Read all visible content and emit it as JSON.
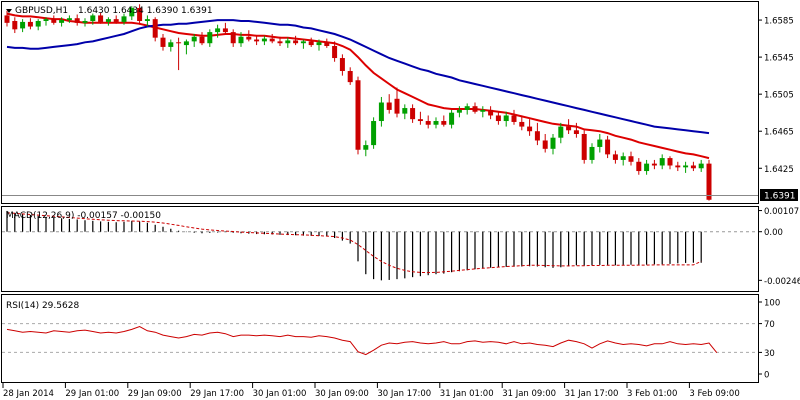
{
  "chart_data": [
    {
      "type": "candlestick",
      "panel": "price",
      "symbol_header": "GBPUSD,H1",
      "ohlc_header": "1.6430 1.6434 1.6390 1.6391",
      "current_price_label": "1.6391",
      "ylim": [
        1.63875,
        1.66045
      ],
      "y_ticks": [
        "1.6585",
        "1.6545",
        "1.6505",
        "1.6465",
        "1.6425"
      ],
      "bull_color": "#00a000",
      "bear_color": "#cc0000",
      "candles": [
        {
          "o": 1.659,
          "h": 1.6595,
          "l": 1.6578,
          "c": 1.6582
        },
        {
          "o": 1.6584,
          "h": 1.6588,
          "l": 1.6571,
          "c": 1.6575
        },
        {
          "o": 1.6576,
          "h": 1.6586,
          "l": 1.6572,
          "c": 1.6583
        },
        {
          "o": 1.6583,
          "h": 1.6587,
          "l": 1.6575,
          "c": 1.6578
        },
        {
          "o": 1.6578,
          "h": 1.6586,
          "l": 1.6574,
          "c": 1.6584
        },
        {
          "o": 1.6584,
          "h": 1.6588,
          "l": 1.6579,
          "c": 1.6586
        },
        {
          "o": 1.6586,
          "h": 1.659,
          "l": 1.658,
          "c": 1.6582
        },
        {
          "o": 1.6582,
          "h": 1.6588,
          "l": 1.6578,
          "c": 1.6585
        },
        {
          "o": 1.6585,
          "h": 1.659,
          "l": 1.6582,
          "c": 1.6587
        },
        {
          "o": 1.6587,
          "h": 1.6591,
          "l": 1.6579,
          "c": 1.6582
        },
        {
          "o": 1.6582,
          "h": 1.6587,
          "l": 1.6578,
          "c": 1.6584
        },
        {
          "o": 1.6584,
          "h": 1.6592,
          "l": 1.658,
          "c": 1.659
        },
        {
          "o": 1.659,
          "h": 1.6593,
          "l": 1.6581,
          "c": 1.6583
        },
        {
          "o": 1.6583,
          "h": 1.6588,
          "l": 1.6579,
          "c": 1.6586
        },
        {
          "o": 1.6586,
          "h": 1.659,
          "l": 1.6581,
          "c": 1.6583
        },
        {
          "o": 1.6583,
          "h": 1.6592,
          "l": 1.658,
          "c": 1.6589
        },
        {
          "o": 1.6589,
          "h": 1.66,
          "l": 1.6585,
          "c": 1.6598
        },
        {
          "o": 1.6598,
          "h": 1.6602,
          "l": 1.658,
          "c": 1.6584
        },
        {
          "o": 1.6584,
          "h": 1.659,
          "l": 1.6578,
          "c": 1.6586
        },
        {
          "o": 1.6586,
          "h": 1.6588,
          "l": 1.6562,
          "c": 1.6566
        },
        {
          "o": 1.6566,
          "h": 1.657,
          "l": 1.6552,
          "c": 1.6556
        },
        {
          "o": 1.6556,
          "h": 1.6564,
          "l": 1.6551,
          "c": 1.6561
        },
        {
          "o": 1.6561,
          "h": 1.6566,
          "l": 1.6531,
          "c": 1.656
        },
        {
          "o": 1.6558,
          "h": 1.6564,
          "l": 1.6548,
          "c": 1.6562
        },
        {
          "o": 1.6562,
          "h": 1.657,
          "l": 1.6556,
          "c": 1.6567
        },
        {
          "o": 1.6567,
          "h": 1.6572,
          "l": 1.6558,
          "c": 1.656
        },
        {
          "o": 1.656,
          "h": 1.6575,
          "l": 1.6556,
          "c": 1.6572
        },
        {
          "o": 1.6572,
          "h": 1.658,
          "l": 1.6566,
          "c": 1.6576
        },
        {
          "o": 1.6576,
          "h": 1.6582,
          "l": 1.657,
          "c": 1.6572
        },
        {
          "o": 1.6572,
          "h": 1.6575,
          "l": 1.6556,
          "c": 1.656
        },
        {
          "o": 1.656,
          "h": 1.6572,
          "l": 1.6556,
          "c": 1.6567
        },
        {
          "o": 1.6567,
          "h": 1.6574,
          "l": 1.6562,
          "c": 1.6564
        },
        {
          "o": 1.6564,
          "h": 1.6568,
          "l": 1.6558,
          "c": 1.6562
        },
        {
          "o": 1.6562,
          "h": 1.6568,
          "l": 1.6558,
          "c": 1.6565
        },
        {
          "o": 1.6565,
          "h": 1.657,
          "l": 1.656,
          "c": 1.6562
        },
        {
          "o": 1.6562,
          "h": 1.6567,
          "l": 1.6557,
          "c": 1.656
        },
        {
          "o": 1.656,
          "h": 1.6566,
          "l": 1.6555,
          "c": 1.6563
        },
        {
          "o": 1.6563,
          "h": 1.6568,
          "l": 1.6558,
          "c": 1.656
        },
        {
          "o": 1.656,
          "h": 1.6564,
          "l": 1.6554,
          "c": 1.6562
        },
        {
          "o": 1.6562,
          "h": 1.6566,
          "l": 1.6556,
          "c": 1.6558
        },
        {
          "o": 1.6558,
          "h": 1.6564,
          "l": 1.6552,
          "c": 1.6561
        },
        {
          "o": 1.6561,
          "h": 1.6565,
          "l": 1.6555,
          "c": 1.6557
        },
        {
          "o": 1.6557,
          "h": 1.6562,
          "l": 1.654,
          "c": 1.6544
        },
        {
          "o": 1.6544,
          "h": 1.6548,
          "l": 1.6525,
          "c": 1.653
        },
        {
          "o": 1.653,
          "h": 1.6534,
          "l": 1.6515,
          "c": 1.6518
        },
        {
          "o": 1.652,
          "h": 1.6524,
          "l": 1.644,
          "c": 1.6445
        },
        {
          "o": 1.6445,
          "h": 1.6455,
          "l": 1.6438,
          "c": 1.645
        },
        {
          "o": 1.645,
          "h": 1.648,
          "l": 1.6446,
          "c": 1.6476
        },
        {
          "o": 1.6476,
          "h": 1.6502,
          "l": 1.647,
          "c": 1.6496
        },
        {
          "o": 1.6496,
          "h": 1.6505,
          "l": 1.6484,
          "c": 1.6488
        },
        {
          "o": 1.65,
          "h": 1.6512,
          "l": 1.648,
          "c": 1.6484
        },
        {
          "o": 1.6484,
          "h": 1.6494,
          "l": 1.6478,
          "c": 1.649
        },
        {
          "o": 1.649,
          "h": 1.6494,
          "l": 1.6474,
          "c": 1.6478
        },
        {
          "o": 1.6478,
          "h": 1.6486,
          "l": 1.6472,
          "c": 1.6476
        },
        {
          "o": 1.6476,
          "h": 1.6482,
          "l": 1.6468,
          "c": 1.6472
        },
        {
          "o": 1.6472,
          "h": 1.648,
          "l": 1.6468,
          "c": 1.6476
        },
        {
          "o": 1.6476,
          "h": 1.6482,
          "l": 1.647,
          "c": 1.6472
        },
        {
          "o": 1.6472,
          "h": 1.6488,
          "l": 1.6468,
          "c": 1.6485
        },
        {
          "o": 1.6485,
          "h": 1.6492,
          "l": 1.648,
          "c": 1.6488
        },
        {
          "o": 1.6488,
          "h": 1.6495,
          "l": 1.6483,
          "c": 1.6492
        },
        {
          "o": 1.6492,
          "h": 1.6496,
          "l": 1.6484,
          "c": 1.6486
        },
        {
          "o": 1.6486,
          "h": 1.6492,
          "l": 1.648,
          "c": 1.6488
        },
        {
          "o": 1.6488,
          "h": 1.6492,
          "l": 1.6478,
          "c": 1.6482
        },
        {
          "o": 1.6482,
          "h": 1.6486,
          "l": 1.6472,
          "c": 1.6476
        },
        {
          "o": 1.6476,
          "h": 1.6486,
          "l": 1.647,
          "c": 1.6482
        },
        {
          "o": 1.6482,
          "h": 1.6488,
          "l": 1.6472,
          "c": 1.6475
        },
        {
          "o": 1.6475,
          "h": 1.6482,
          "l": 1.6466,
          "c": 1.647
        },
        {
          "o": 1.647,
          "h": 1.6478,
          "l": 1.646,
          "c": 1.6465
        },
        {
          "o": 1.6465,
          "h": 1.6474,
          "l": 1.645,
          "c": 1.6455
        },
        {
          "o": 1.6455,
          "h": 1.6462,
          "l": 1.6442,
          "c": 1.6446
        },
        {
          "o": 1.6446,
          "h": 1.6462,
          "l": 1.644,
          "c": 1.6458
        },
        {
          "o": 1.6458,
          "h": 1.6474,
          "l": 1.6452,
          "c": 1.647
        },
        {
          "o": 1.647,
          "h": 1.6478,
          "l": 1.6462,
          "c": 1.6466
        },
        {
          "o": 1.6466,
          "h": 1.6474,
          "l": 1.6458,
          "c": 1.6462
        },
        {
          "o": 1.6462,
          "h": 1.6466,
          "l": 1.643,
          "c": 1.6434
        },
        {
          "o": 1.6434,
          "h": 1.6452,
          "l": 1.643,
          "c": 1.6448
        },
        {
          "o": 1.6448,
          "h": 1.6462,
          "l": 1.6442,
          "c": 1.6456
        },
        {
          "o": 1.6456,
          "h": 1.646,
          "l": 1.6436,
          "c": 1.644
        },
        {
          "o": 1.644,
          "h": 1.6444,
          "l": 1.643,
          "c": 1.6434
        },
        {
          "o": 1.6434,
          "h": 1.6442,
          "l": 1.6428,
          "c": 1.6438
        },
        {
          "o": 1.6438,
          "h": 1.6443,
          "l": 1.6428,
          "c": 1.6432
        },
        {
          "o": 1.6432,
          "h": 1.6436,
          "l": 1.6418,
          "c": 1.6422
        },
        {
          "o": 1.6422,
          "h": 1.6434,
          "l": 1.6418,
          "c": 1.643
        },
        {
          "o": 1.643,
          "h": 1.6434,
          "l": 1.6424,
          "c": 1.6428
        },
        {
          "o": 1.6428,
          "h": 1.644,
          "l": 1.6424,
          "c": 1.6436
        },
        {
          "o": 1.6436,
          "h": 1.6438,
          "l": 1.6424,
          "c": 1.6428
        },
        {
          "o": 1.6428,
          "h": 1.6432,
          "l": 1.6422,
          "c": 1.6426
        },
        {
          "o": 1.6426,
          "h": 1.6432,
          "l": 1.642,
          "c": 1.6428
        },
        {
          "o": 1.6428,
          "h": 1.6432,
          "l": 1.6422,
          "c": 1.6425
        },
        {
          "o": 1.6425,
          "h": 1.6434,
          "l": 1.6421,
          "c": 1.643
        },
        {
          "o": 1.643,
          "h": 1.6434,
          "l": 1.639,
          "c": 1.6391
        }
      ],
      "moving_averages": [
        {
          "color": "#dd0000",
          "points": [
            1.6592,
            1.659,
            1.6589,
            1.6589,
            1.6588,
            1.6587,
            1.6586,
            1.6586,
            1.6584,
            1.6583,
            1.6582,
            1.6582,
            1.6582,
            1.6582,
            1.6582,
            1.6582,
            1.6582,
            1.6581,
            1.6579,
            1.6577,
            1.6575,
            1.6573,
            1.6571,
            1.657,
            1.6569,
            1.6568,
            1.6568,
            1.6569,
            1.657,
            1.657,
            1.6569,
            1.6569,
            1.6568,
            1.6568,
            1.6567,
            1.6566,
            1.6566,
            1.6565,
            1.6564,
            1.6563,
            1.6562,
            1.6561,
            1.656,
            1.6557,
            1.6553,
            1.6545,
            1.6536,
            1.6528,
            1.6522,
            1.6516,
            1.651,
            1.6506,
            1.6502,
            1.6498,
            1.6494,
            1.6492,
            1.649,
            1.6489,
            1.6489,
            1.6489,
            1.6489,
            1.6488,
            1.6487,
            1.6486,
            1.6485,
            1.6483,
            1.6481,
            1.6479,
            1.6477,
            1.6475,
            1.6473,
            1.6472,
            1.6471,
            1.647,
            1.6467,
            1.6466,
            1.6465,
            1.6463,
            1.646,
            1.6458,
            1.6456,
            1.6453,
            1.6451,
            1.6449,
            1.6447,
            1.6445,
            1.6443,
            1.6441,
            1.644,
            1.6438,
            1.6436
          ]
        },
        {
          "color": "#0000aa",
          "points": [
            1.6556,
            1.6555,
            1.6555,
            1.6554,
            1.6554,
            1.6555,
            1.6556,
            1.6557,
            1.6558,
            1.6559,
            1.6561,
            1.6562,
            1.6564,
            1.6566,
            1.6568,
            1.657,
            1.6573,
            1.6576,
            1.6578,
            1.6579,
            1.658,
            1.658,
            1.6581,
            1.6581,
            1.6582,
            1.6583,
            1.6584,
            1.6585,
            1.6585,
            1.6585,
            1.6584,
            1.6584,
            1.6583,
            1.6582,
            1.6581,
            1.658,
            1.658,
            1.6579,
            1.6577,
            1.6576,
            1.6574,
            1.6572,
            1.657,
            1.6567,
            1.6564,
            1.656,
            1.6556,
            1.6552,
            1.6548,
            1.6544,
            1.6541,
            1.6538,
            1.6535,
            1.6532,
            1.653,
            1.6527,
            1.6525,
            1.6523,
            1.652,
            1.6518,
            1.6516,
            1.6514,
            1.6512,
            1.651,
            1.6508,
            1.6506,
            1.6504,
            1.6502,
            1.65,
            1.6498,
            1.6496,
            1.6494,
            1.6492,
            1.649,
            1.6488,
            1.6486,
            1.6484,
            1.6482,
            1.648,
            1.6478,
            1.6476,
            1.6474,
            1.6472,
            1.647,
            1.6469,
            1.6468,
            1.6467,
            1.6466,
            1.6465,
            1.6464,
            1.6463
          ]
        }
      ]
    },
    {
      "type": "bar",
      "panel": "macd",
      "header": "MACD(12,26,9) -0.00157 -0.00150",
      "ylim": [
        -0.003,
        0.00125
      ],
      "y_ticks": [
        "0.00107",
        "0.00",
        "-0.00246"
      ],
      "histogram": [
        0.00105,
        0.00095,
        0.0009,
        0.00085,
        0.0008,
        0.00075,
        0.00072,
        0.00068,
        0.00065,
        0.00062,
        0.00058,
        0.00055,
        0.00052,
        0.0005,
        0.00048,
        0.0005,
        0.00055,
        0.00052,
        0.00045,
        0.00035,
        0.00025,
        0.00015,
        5e-05,
        -2e-05,
        -5e-05,
        -8e-05,
        -6e-05,
        -4e-05,
        -2e-05,
        -5e-05,
        -8e-05,
        -0.0001,
        -0.00012,
        -0.00013,
        -0.00014,
        -0.00016,
        -0.00017,
        -0.00018,
        -0.0002,
        -0.00021,
        -0.00022,
        -0.00024,
        -0.00032,
        -0.00045,
        -0.0006,
        -0.0015,
        -0.00215,
        -0.0024,
        -0.00246,
        -0.00244,
        -0.0024,
        -0.00236,
        -0.0023,
        -0.00225,
        -0.0022,
        -0.00215,
        -0.00212,
        -0.00205,
        -0.002,
        -0.00195,
        -0.0019,
        -0.00186,
        -0.00182,
        -0.0018,
        -0.00178,
        -0.00177,
        -0.00176,
        -0.00175,
        -0.00176,
        -0.0018,
        -0.00183,
        -0.0018,
        -0.00175,
        -0.0017,
        -0.00172,
        -0.0017,
        -0.00168,
        -0.00168,
        -0.0017,
        -0.00168,
        -0.00167,
        -0.00168,
        -0.00167,
        -0.00165,
        -0.00165,
        -0.00163,
        -0.0016,
        -0.00158,
        -0.00157,
        -0.00157
      ],
      "signal": [
        0.00095,
        0.00093,
        0.0009,
        0.00087,
        0.00084,
        0.00081,
        0.00078,
        0.00075,
        0.00072,
        0.00069,
        0.00066,
        0.00063,
        0.0006,
        0.00058,
        0.00056,
        0.00055,
        0.00054,
        0.00053,
        0.00051,
        0.00048,
        0.00044,
        0.00038,
        0.00032,
        0.00025,
        0.00019,
        0.00013,
        9e-05,
        6e-05,
        3e-05,
        1e-05,
        -2e-05,
        -4e-05,
        -6e-05,
        -8e-05,
        -0.0001,
        -0.00012,
        -0.00013,
        -0.00015,
        -0.00016,
        -0.00018,
        -0.0002,
        -0.00022,
        -0.00025,
        -0.00032,
        -0.00042,
        -0.00065,
        -0.00095,
        -0.00125,
        -0.0015,
        -0.0017,
        -0.00185,
        -0.00196,
        -0.00203,
        -0.00206,
        -0.00207,
        -0.00206,
        -0.00203,
        -0.002,
        -0.00196,
        -0.00192,
        -0.00188,
        -0.00185,
        -0.00182,
        -0.00179,
        -0.00176,
        -0.00174,
        -0.00172,
        -0.0017,
        -0.0017,
        -0.00171,
        -0.00172,
        -0.00173,
        -0.00173,
        -0.00172,
        -0.00172,
        -0.00171,
        -0.00171,
        -0.0017,
        -0.0017,
        -0.0017,
        -0.0017,
        -0.00169,
        -0.00169,
        -0.00168,
        -0.00168,
        -0.00168,
        -0.00168,
        -0.00168,
        -0.00168,
        -0.0015
      ],
      "histogram_color": "#000000",
      "signal_color": "#cc0000",
      "zero_line_color": "#999999"
    },
    {
      "type": "line",
      "panel": "rsi",
      "header": "RSI(14) 29.5628",
      "ylim": [
        0,
        100
      ],
      "y_ticks": [
        "100",
        "70",
        "30",
        "0"
      ],
      "levels": [
        70,
        30
      ],
      "color": "#cc0000",
      "values": [
        62,
        60,
        58,
        59,
        58,
        57,
        60,
        59,
        58,
        60,
        61,
        59,
        57,
        58,
        57,
        59,
        62,
        66,
        60,
        58,
        54,
        52,
        50,
        52,
        55,
        54,
        57,
        58,
        56,
        52,
        54,
        54,
        53,
        54,
        53,
        52,
        54,
        52,
        52,
        51,
        53,
        52,
        50,
        47,
        45,
        31,
        27,
        33,
        40,
        43,
        42,
        44,
        45,
        43,
        42,
        43,
        45,
        42,
        42,
        45,
        46,
        44,
        45,
        44,
        42,
        45,
        42,
        43,
        41,
        40,
        38,
        43,
        47,
        45,
        42,
        36,
        42,
        46,
        43,
        41,
        42,
        41,
        39,
        42,
        42,
        45,
        42,
        41,
        42,
        41,
        43,
        29.5628
      ]
    }
  ],
  "x_axis": {
    "labels": [
      "28 Jan 2014",
      "29 Jan 01:00",
      "29 Jan 09:00",
      "29 Jan 17:00",
      "30 Jan 01:00",
      "30 Jan 09:00",
      "30 Jan 17:00",
      "31 Jan 01:00",
      "31 Jan 09:00",
      "31 Jan 17:00",
      "3 Feb 01:00",
      "3 Feb 09:00"
    ]
  },
  "colors": {
    "background": "#ffffff",
    "frame": "#000000",
    "grid_level": "#bbbbbb"
  }
}
